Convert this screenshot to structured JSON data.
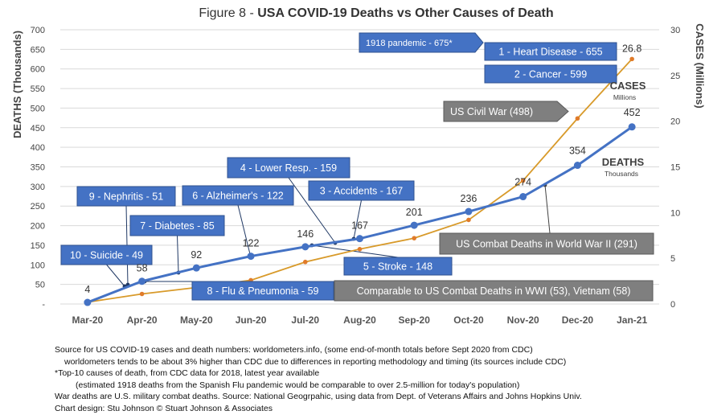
{
  "chart_data": {
    "type": "line",
    "title_prefix": "Figure 8 - ",
    "title_main": "USA COVID-19 Deaths vs Other Causes of Death",
    "categories": [
      "Mar-20",
      "Apr-20",
      "May-20",
      "Jun-20",
      "Jul-20",
      "Aug-20",
      "Sep-20",
      "Oct-20",
      "Nov-20",
      "Dec-20",
      "Jan-21"
    ],
    "left_axis": {
      "label": "DEATHS (Thousands)",
      "range": [
        0,
        700
      ],
      "ticks": [
        "-",
        "50",
        "100",
        "150",
        "200",
        "250",
        "300",
        "350",
        "400",
        "450",
        "500",
        "550",
        "600",
        "650",
        "700"
      ]
    },
    "right_axis": {
      "label": "CASES (Millions)",
      "range": [
        0,
        30
      ],
      "ticks": [
        "0",
        "5",
        "10",
        "15",
        "20",
        "25",
        "30"
      ]
    },
    "grid": "horizontal",
    "series": [
      {
        "name": "DEATHS",
        "unit_label": "Thousands",
        "color": "#4472C4",
        "points": [
          {
            "x": 0,
            "y": 4,
            "label": "4"
          },
          {
            "x": 1,
            "y": 58,
            "label": "58"
          },
          {
            "x": 2,
            "y": 92,
            "label": "92"
          },
          {
            "x": 3,
            "y": 122,
            "label": "122"
          },
          {
            "x": 4,
            "y": 146,
            "label": "146"
          },
          {
            "x": 5,
            "y": 167,
            "label": "167"
          },
          {
            "x": 6,
            "y": 201,
            "label": "201"
          },
          {
            "x": 7,
            "y": 236,
            "label": "236"
          },
          {
            "x": 8,
            "y": 274,
            "label": "274"
          },
          {
            "x": 9,
            "y": 354,
            "label": "354"
          },
          {
            "x": 10,
            "y": 452,
            "label": "452"
          }
        ]
      },
      {
        "name": "CASES",
        "unit_label": "Millions",
        "color": "#D89A2A",
        "points": [
          {
            "x": 0,
            "y": 0.2
          },
          {
            "x": 1,
            "y": 1.1
          },
          {
            "x": 2,
            "y": 1.8
          },
          {
            "x": 3,
            "y": 2.6
          },
          {
            "x": 4,
            "y": 4.6
          },
          {
            "x": 5,
            "y": 6.0
          },
          {
            "x": 6,
            "y": 7.2
          },
          {
            "x": 7,
            "y": 9.2
          },
          {
            "x": 8,
            "y": 13.5
          },
          {
            "x": 9,
            "y": 20.3
          },
          {
            "x": 10,
            "y": 26.8,
            "label": "26.8"
          }
        ]
      }
    ],
    "callouts_blue": [
      {
        "text": "1 - Heart Disease - 655",
        "value": 655
      },
      {
        "text": "2 - Cancer - 599",
        "value": 599
      },
      {
        "text": "3 - Accidents - 167",
        "value": 167
      },
      {
        "text": "4 - Lower Resp.  - 159",
        "value": 159
      },
      {
        "text": "5  - Stroke - 148",
        "value": 148
      },
      {
        "text": "6 - Alzheimer's - 122",
        "value": 122
      },
      {
        "text": "7 - Diabetes - 85",
        "value": 85
      },
      {
        "text": "8 - Flu & Pneumonia - 59",
        "value": 59
      },
      {
        "text": "9 - Nephritis - 51",
        "value": 51
      },
      {
        "text": "10 - Suicide - 49",
        "value": 49
      },
      {
        "text": "1918 pandemic - 675*",
        "value": 675
      }
    ],
    "callouts_gray": [
      {
        "text": "US Civil War (498)",
        "value": 498
      },
      {
        "text": "US Combat Deaths in World War II (291)",
        "value": 291
      },
      {
        "text": "Comparable to US Combat Deaths in WWI (53), Vietnam (58)",
        "value": 53
      }
    ]
  },
  "notes": {
    "line1": "Source for US COVID-19 cases and death numbers: worldometers.info, (some end-of-month totals before Sept 2020 from CDC)",
    "line2": "worldometers tends to be about 3% higher than CDC due to differences in reporting methodology and timing (its sources include CDC)",
    "line3": "*Top-10 causes of death, from CDC data for 2018, latest year available",
    "line4": "(estimated 1918 deaths from the Spanish Flu pandemic would be comparable to over 2.5-million for today's population)",
    "line5": "War deaths are U.S. military combat deaths.  Source: National Geogrpahic, using data from Dept. of Veterans Affairs and Johns Hopkins Univ.",
    "line6": "Chart design: Stu Johnson © Stuart Johnson & Associates"
  },
  "colors": {
    "blue_box": "#4472C4",
    "gray_box": "#7F7F7F",
    "deaths": "#4472C4",
    "cases": "#D89A2A"
  }
}
